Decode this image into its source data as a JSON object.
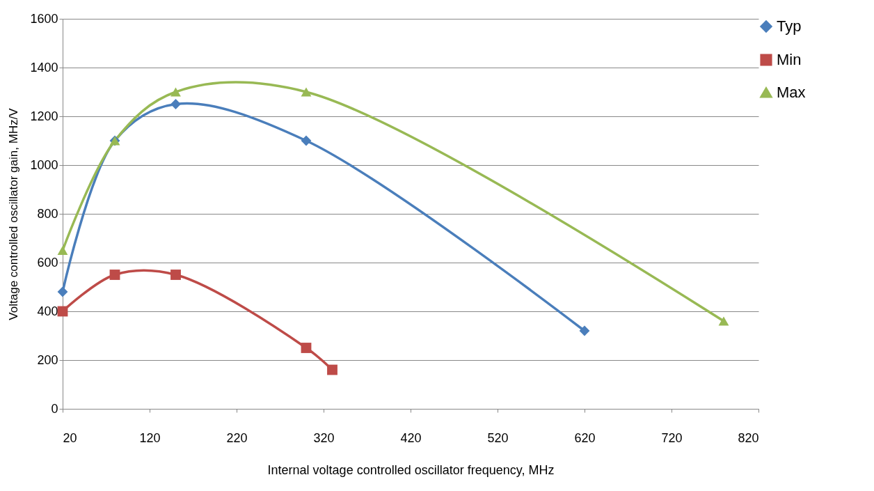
{
  "chart_data": {
    "type": "line",
    "xlabel": "Internal voltage controlled oscillator frequency, MHz",
    "ylabel": "Voltage controlled oscillator gain, MHz/V",
    "xlim": [
      20,
      820
    ],
    "xticks": [
      20,
      120,
      220,
      320,
      420,
      520,
      620,
      720,
      820
    ],
    "ylim": [
      0,
      1600
    ],
    "yticks": [
      0,
      200,
      400,
      600,
      800,
      1000,
      1200,
      1400,
      1600
    ],
    "grid": "y",
    "legend": "right",
    "line_style": "solid",
    "series": [
      {
        "name": "Typ",
        "color": "#4a7ebb",
        "marker": "diamond",
        "x": [
          20,
          80,
          150,
          300,
          620
        ],
        "values": [
          480,
          1100,
          1250,
          1100,
          320
        ]
      },
      {
        "name": "Min",
        "color": "#be4b48",
        "marker": "square",
        "x": [
          20,
          80,
          150,
          300,
          330
        ],
        "values": [
          400,
          550,
          550,
          250,
          160
        ]
      },
      {
        "name": "Max",
        "color": "#98b954",
        "marker": "triangle",
        "x": [
          20,
          80,
          150,
          300,
          780
        ],
        "values": [
          650,
          1100,
          1300,
          1300,
          360
        ]
      }
    ]
  }
}
